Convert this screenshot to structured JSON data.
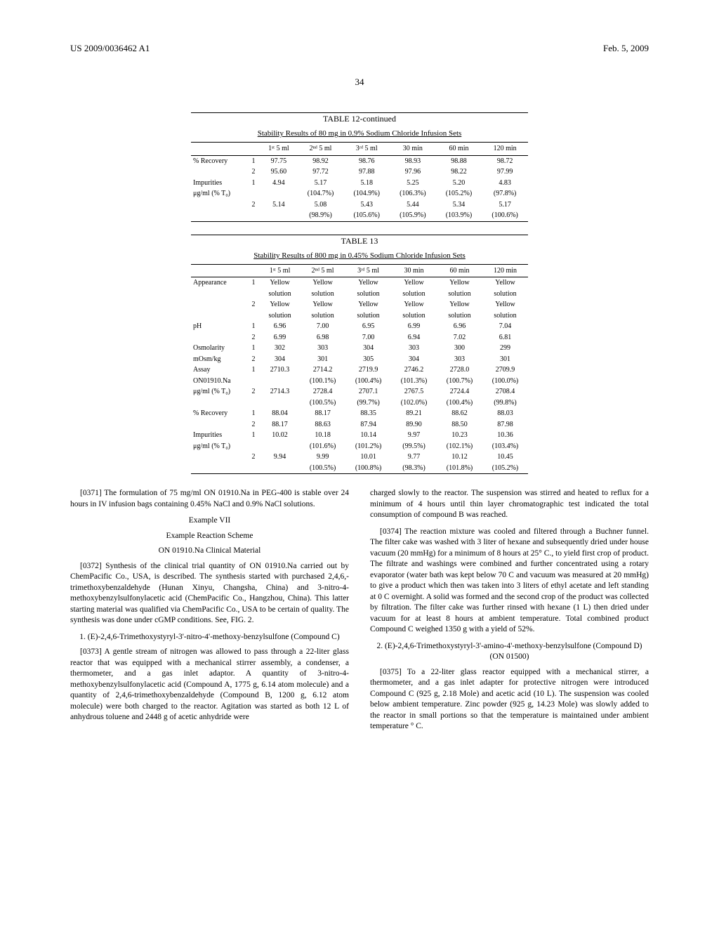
{
  "header": {
    "docnum": "US 2009/0036462 A1",
    "date": "Feb. 5, 2009",
    "page": "34"
  },
  "table12": {
    "title": "TABLE 12-continued",
    "subtitle": "Stability Results of 80 mg in 0.9% Sodium Chloride Infusion Sets",
    "columns": [
      "",
      "",
      "1ˢᵗ 5 ml",
      "2ⁿᵈ 5 ml",
      "3ʳᵈ 5 ml",
      "30 min",
      "60 min",
      "120 min"
    ],
    "rows": [
      [
        "% Recovery",
        "1",
        "97.75",
        "98.92",
        "98.76",
        "98.93",
        "98.88",
        "98.72"
      ],
      [
        "",
        "2",
        "95.60",
        "97.72",
        "97.88",
        "97.96",
        "98.22",
        "97.99"
      ],
      [
        "Impurities",
        "1",
        "4.94",
        "5.17",
        "5.18",
        "5.25",
        "5.20",
        "4.83"
      ],
      [
        "μg/ml (% T₀)",
        "",
        "",
        "(104.7%)",
        "(104.9%)",
        "(106.3%)",
        "(105.2%)",
        "(97.8%)"
      ],
      [
        "",
        "2",
        "5.14",
        "5.08",
        "5.43",
        "5.44",
        "5.34",
        "5.17"
      ],
      [
        "",
        "",
        "",
        "(98.9%)",
        "(105.6%)",
        "(105.9%)",
        "(103.9%)",
        "(100.6%)"
      ]
    ]
  },
  "table13": {
    "title": "TABLE 13",
    "subtitle": "Stability Results of 800 mg in 0.45% Sodium Chloride Infusion Sets",
    "columns": [
      "",
      "",
      "1ˢᵗ 5 ml",
      "2ⁿᵈ 5 ml",
      "3ʳᵈ 5 ml",
      "30 min",
      "60 min",
      "120 min"
    ],
    "rows": [
      [
        "Appearance",
        "1",
        "Yellow",
        "Yellow",
        "Yellow",
        "Yellow",
        "Yellow",
        "Yellow"
      ],
      [
        "",
        "",
        "solution",
        "solution",
        "solution",
        "solution",
        "solution",
        "solution"
      ],
      [
        "",
        "2",
        "Yellow",
        "Yellow",
        "Yellow",
        "Yellow",
        "Yellow",
        "Yellow"
      ],
      [
        "",
        "",
        "solution",
        "solution",
        "solution",
        "solution",
        "solution",
        "solution"
      ],
      [
        "pH",
        "1",
        "6.96",
        "7.00",
        "6.95",
        "6.99",
        "6.96",
        "7.04"
      ],
      [
        "",
        "2",
        "6.99",
        "6.98",
        "7.00",
        "6.94",
        "7.02",
        "6.81"
      ],
      [
        "Osmolarity",
        "1",
        "302",
        "303",
        "304",
        "303",
        "300",
        "299"
      ],
      [
        "mOsm/kg",
        "2",
        "304",
        "301",
        "305",
        "304",
        "303",
        "301"
      ],
      [
        "Assay",
        "1",
        "2710.3",
        "2714.2",
        "2719.9",
        "2746.2",
        "2728.0",
        "2709.9"
      ],
      [
        "ON01910.Na",
        "",
        "",
        "(100.1%)",
        "(100.4%)",
        "(101.3%)",
        "(100.7%)",
        "(100.0%)"
      ],
      [
        "μg/ml (% T₀)",
        "2",
        "2714.3",
        "2728.4",
        "2707.1",
        "2767.5",
        "2724.4",
        "2708.4"
      ],
      [
        "",
        "",
        "",
        "(100.5%)",
        "(99.7%)",
        "(102.0%)",
        "(100.4%)",
        "(99.8%)"
      ],
      [
        "% Recovery",
        "1",
        "88.04",
        "88.17",
        "88.35",
        "89.21",
        "88.62",
        "88.03"
      ],
      [
        "",
        "2",
        "88.17",
        "88.63",
        "87.94",
        "89.90",
        "88.50",
        "87.98"
      ],
      [
        "Impurities",
        "1",
        "10.02",
        "10.18",
        "10.14",
        "9.97",
        "10.23",
        "10.36"
      ],
      [
        "μg/ml (% T₀)",
        "",
        "",
        "(101.6%)",
        "(101.2%)",
        "(99.5%)",
        "(102.1%)",
        "(103.4%)"
      ],
      [
        "",
        "2",
        "9.94",
        "9.99",
        "10.01",
        "9.77",
        "10.12",
        "10.45"
      ],
      [
        "",
        "",
        "",
        "(100.5%)",
        "(100.8%)",
        "(98.3%)",
        "(101.8%)",
        "(105.2%)"
      ]
    ]
  },
  "body": {
    "p0371": "[0371]   The formulation of 75 mg/ml ON 01910.Na in PEG-400 is stable over 24 hours in IV infusion bags containing 0.45% NaCl and 0.9% NaCl solutions.",
    "exVII": "Example VII",
    "exVIIa": "Example Reaction Scheme",
    "exVIIb": "ON 01910.Na Clinical Material",
    "p0372": "[0372]   Synthesis of the clinical trial quantity of ON 01910.Na carried out by ChemPacific Co., USA, is described. The synthesis started with purchased 2,4,6,-trimethoxybenzaldehyde (Hunan Xinyu, Changsha, China) and 3-nitro-4-methoxybenzylsulfonylacetic acid (ChemPacific Co., Hangzhou, China). This latter starting material was qualified via ChemPacific Co., USA to be certain of quality. The synthesis was done under cGMP conditions. See, FIG. 2.",
    "sec1": "1. (E)-2,4,6-Trimethoxystyryl-3'-nitro-4'-methoxy-benzylsulfone (Compound C)",
    "p0373": "[0373]   A gentle stream of nitrogen was allowed to pass through a 22-liter glass reactor that was equipped with a mechanical stirrer assembly, a condenser, a thermometer, and a gas inlet adaptor. A quantity of 3-nitro-4-methoxybenzylsulfonylacetic acid (Compound A, 1775 g, 6.14 atom molecule) and a quantity of 2,4,6-trimethoxybenzaldehyde (Compound B, 1200 g, 6.12 atom molecule) were both charged to the reactor. Agitation was started as both 12 L of anhydrous toluene and 2448 g of acetic anhydride were",
    "p0373b": "charged slowly to the reactor. The suspension was stirred and heated to reflux for a minimum of 4 hours until thin layer chromatographic test indicated the total consumption of compound B was reached.",
    "p0374": "[0374]   The reaction mixture was cooled and filtered through a Buchner funnel. The filter cake was washed with 3 liter of hexane and subsequently dried under house vacuum (20 mmHg) for a minimum of 8 hours at 25° C., to yield first crop of product. The filtrate and washings were combined and further concentrated using a rotary evaporator (water bath was kept below 70 C and vacuum was measured at 20 mmHg) to give a product which then was taken into 3 liters of ethyl acetate and left standing at 0 C overnight. A solid was formed and the second crop of the product was collected by filtration. The filter cake was further rinsed with hexane (1 L) then dried under vacuum for at least 8 hours at ambient temperature. Total combined product Compound C weighed 1350 g with a yield of 52%.",
    "sec2": "2. (E)-2,4,6-Trimethoxystyryl-3'-amino-4'-methoxy-benzylsulfone (Compound D) (ON 01500)",
    "p0375": "[0375]   To a 22-liter glass reactor equipped with a mechanical stirrer, a thermometer, and a gas inlet adapter for protective nitrogen were introduced Compound C (925 g, 2.18 Mole) and acetic acid (10 L). The suspension was cooled below ambient temperature. Zinc powder (925 g, 14.23 Mole) was slowly added to the reactor in small portions so that the temperature is maintained under ambient temperature ° C."
  }
}
